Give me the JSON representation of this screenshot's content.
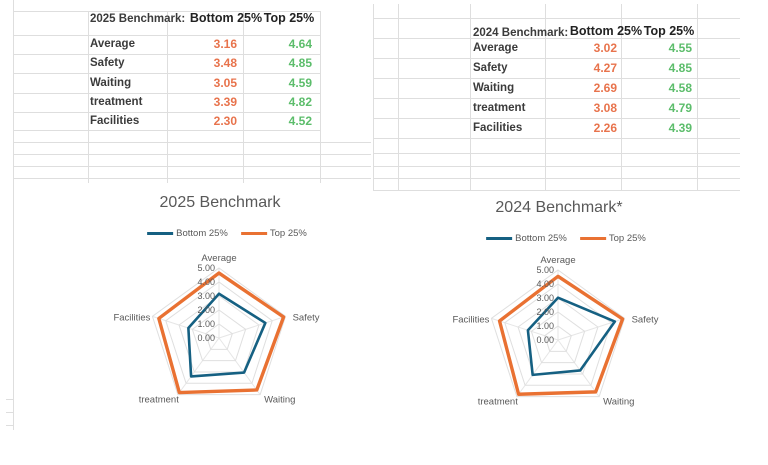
{
  "sheet": {
    "tables": [
      {
        "title": "2025 Benchmark:",
        "col_headers": [
          "Bottom 25%",
          "Top 25%"
        ],
        "rows": [
          {
            "label": "Average",
            "bottom": "3.16",
            "top": "4.64"
          },
          {
            "label": "Safety",
            "bottom": "3.48",
            "top": "4.85"
          },
          {
            "label": "Waiting",
            "bottom": "3.05",
            "top": "4.59"
          },
          {
            "label": "treatment",
            "bottom": "3.39",
            "top": "4.82"
          },
          {
            "label": "Facilities",
            "bottom": "2.30",
            "top": "4.52"
          }
        ]
      },
      {
        "title": "2024 Benchmark:",
        "col_headers": [
          "Bottom 25%",
          "Top 25%"
        ],
        "rows": [
          {
            "label": "Average",
            "bottom": "3.02",
            "top": "4.55"
          },
          {
            "label": "Safety",
            "bottom": "4.27",
            "top": "4.85"
          },
          {
            "label": "Waiting",
            "bottom": "2.69",
            "top": "4.58"
          },
          {
            "label": "treatment",
            "bottom": "3.08",
            "top": "4.79"
          },
          {
            "label": "Facilities",
            "bottom": "2.26",
            "top": "4.39"
          }
        ]
      }
    ]
  },
  "colors": {
    "gridline": "#DEDEDE",
    "table_text": "#3B3B3B",
    "header_text": "#222222",
    "bottom_value": "#E8734C",
    "top_value": "#5CBD6B",
    "chart_text": "#595959",
    "series_bottom": "#156082",
    "series_top": "#E97132"
  },
  "chart_data": [
    {
      "type": "radar",
      "title": "2025 Benchmark",
      "categories": [
        "Average",
        "Safety",
        "Waiting",
        "treatment",
        "Facilities"
      ],
      "series": [
        {
          "name": "Bottom 25%",
          "values": [
            3.16,
            3.48,
            3.05,
            3.39,
            2.3
          ],
          "color": "#156082"
        },
        {
          "name": "Top 25%",
          "values": [
            4.64,
            4.85,
            4.59,
            4.82,
            4.52
          ],
          "color": "#E97132"
        }
      ],
      "rlim": [
        0,
        5
      ],
      "ring_interval": 1,
      "ring_labels": [
        "0.00",
        "1.00",
        "2.00",
        "3.00",
        "4.00",
        "5.00"
      ],
      "legend_position": "top",
      "gridlines": true
    },
    {
      "type": "radar",
      "title": "2024 Benchmark*",
      "categories": [
        "Average",
        "Safety",
        "Waiting",
        "treatment",
        "Facilities"
      ],
      "series": [
        {
          "name": "Bottom 25%",
          "values": [
            3.02,
            4.27,
            2.69,
            3.08,
            2.26
          ],
          "color": "#156082"
        },
        {
          "name": "Top 25%",
          "values": [
            4.55,
            4.85,
            4.58,
            4.79,
            4.39
          ],
          "color": "#E97132"
        }
      ],
      "rlim": [
        0,
        5
      ],
      "ring_interval": 1,
      "ring_labels": [
        "0.00",
        "1.00",
        "2.00",
        "3.00",
        "4.00",
        "5.00"
      ],
      "legend_position": "top",
      "gridlines": true
    }
  ]
}
